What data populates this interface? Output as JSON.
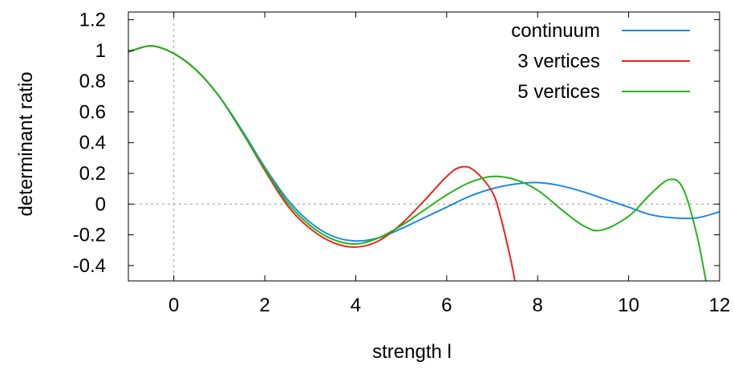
{
  "chart_data": {
    "type": "line",
    "xlabel": "strength l",
    "ylabel": "determinant ratio",
    "xlim": [
      -1,
      12
    ],
    "ylim": [
      -0.5,
      1.25
    ],
    "x_ticks": [
      0,
      2,
      4,
      6,
      8,
      10,
      12
    ],
    "x_tick_labels": [
      "0",
      "2",
      "4",
      "6",
      "8",
      "10",
      "12"
    ],
    "y_ticks": [
      -0.4,
      -0.2,
      0,
      0.2,
      0.4,
      0.6,
      0.8,
      1,
      1.2
    ],
    "y_tick_labels": [
      "-0.4",
      "-0.2",
      "0",
      "0.2",
      "0.4",
      "0.6",
      "0.8",
      "1",
      "1.2"
    ],
    "reference_lines": [
      {
        "axis": "x",
        "value": 0
      },
      {
        "axis": "y",
        "value": 0
      }
    ],
    "legend_position": "top-right",
    "series": [
      {
        "name": "continuum",
        "color": "#1e88e5",
        "points": [
          [
            -1,
            0.99
          ],
          [
            -0.5,
            1.03
          ],
          [
            0,
            0.98
          ],
          [
            0.5,
            0.87
          ],
          [
            1,
            0.7
          ],
          [
            1.5,
            0.48
          ],
          [
            2,
            0.24
          ],
          [
            2.5,
            0.03
          ],
          [
            3,
            -0.12
          ],
          [
            3.5,
            -0.21
          ],
          [
            4,
            -0.24
          ],
          [
            4.5,
            -0.22
          ],
          [
            5,
            -0.16
          ],
          [
            5.5,
            -0.09
          ],
          [
            6,
            -0.02
          ],
          [
            6.5,
            0.05
          ],
          [
            7,
            0.1
          ],
          [
            7.5,
            0.13
          ],
          [
            8,
            0.14
          ],
          [
            8.5,
            0.12
          ],
          [
            9,
            0.08
          ],
          [
            9.5,
            0.03
          ],
          [
            10,
            -0.02
          ],
          [
            10.5,
            -0.07
          ],
          [
            11,
            -0.09
          ],
          [
            11.5,
            -0.09
          ],
          [
            12,
            -0.05
          ]
        ]
      },
      {
        "name": "3 vertices",
        "color": "#e8261c",
        "points": [
          [
            -1,
            0.99
          ],
          [
            -0.5,
            1.03
          ],
          [
            0,
            0.98
          ],
          [
            0.5,
            0.87
          ],
          [
            1,
            0.7
          ],
          [
            1.5,
            0.47
          ],
          [
            2,
            0.22
          ],
          [
            2.5,
            -0.01
          ],
          [
            3,
            -0.16
          ],
          [
            3.5,
            -0.25
          ],
          [
            4,
            -0.28
          ],
          [
            4.5,
            -0.24
          ],
          [
            5,
            -0.13
          ],
          [
            5.5,
            0.02
          ],
          [
            6,
            0.18
          ],
          [
            6.3,
            0.24
          ],
          [
            6.6,
            0.22
          ],
          [
            7,
            0.08
          ],
          [
            7.2,
            -0.1
          ],
          [
            7.4,
            -0.35
          ],
          [
            7.5,
            -0.5
          ]
        ]
      },
      {
        "name": "5 vertices",
        "color": "#22b518",
        "points": [
          [
            -1,
            0.99
          ],
          [
            -0.5,
            1.03
          ],
          [
            0,
            0.98
          ],
          [
            0.5,
            0.87
          ],
          [
            1,
            0.7
          ],
          [
            1.5,
            0.47
          ],
          [
            2,
            0.23
          ],
          [
            2.5,
            0.01
          ],
          [
            3,
            -0.14
          ],
          [
            3.5,
            -0.23
          ],
          [
            4,
            -0.26
          ],
          [
            4.5,
            -0.22
          ],
          [
            5,
            -0.14
          ],
          [
            5.5,
            -0.04
          ],
          [
            6,
            0.06
          ],
          [
            6.5,
            0.14
          ],
          [
            7,
            0.18
          ],
          [
            7.5,
            0.16
          ],
          [
            8,
            0.09
          ],
          [
            8.5,
            -0.03
          ],
          [
            9,
            -0.14
          ],
          [
            9.4,
            -0.17
          ],
          [
            10,
            -0.08
          ],
          [
            10.5,
            0.07
          ],
          [
            10.9,
            0.16
          ],
          [
            11.2,
            0.1
          ],
          [
            11.5,
            -0.2
          ],
          [
            11.7,
            -0.5
          ]
        ]
      }
    ]
  }
}
